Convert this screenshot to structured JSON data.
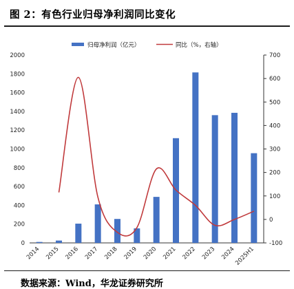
{
  "figure": {
    "title": "图 2：有色行业归母净利润同比变化",
    "source": "数据来源：Wind，华龙证券研究所"
  },
  "chart_data": {
    "type": "bar",
    "categories": [
      "2014",
      "2015",
      "2016",
      "2017",
      "2018",
      "2019",
      "2020",
      "2021",
      "2022",
      "2023",
      "2024",
      "2025H1"
    ],
    "series": [
      {
        "name": "归母净利润（亿元）",
        "type": "bar",
        "axis": "left",
        "color": "#4472C4",
        "values": [
          10,
          25,
          205,
          410,
          255,
          155,
          490,
          1115,
          1815,
          1360,
          1385,
          955
        ]
      },
      {
        "name": "同比（%，右轴）",
        "type": "line",
        "axis": "right",
        "color": "#C0393B",
        "values": [
          null,
          115,
          605,
          95,
          -55,
          -35,
          215,
          125,
          60,
          -25,
          0,
          35
        ]
      }
    ],
    "left_axis": {
      "min": 0,
      "max": 2000,
      "step": 200
    },
    "right_axis": {
      "min": -100,
      "max": 700,
      "step": 100
    },
    "legend_position": "top",
    "grid": false
  }
}
